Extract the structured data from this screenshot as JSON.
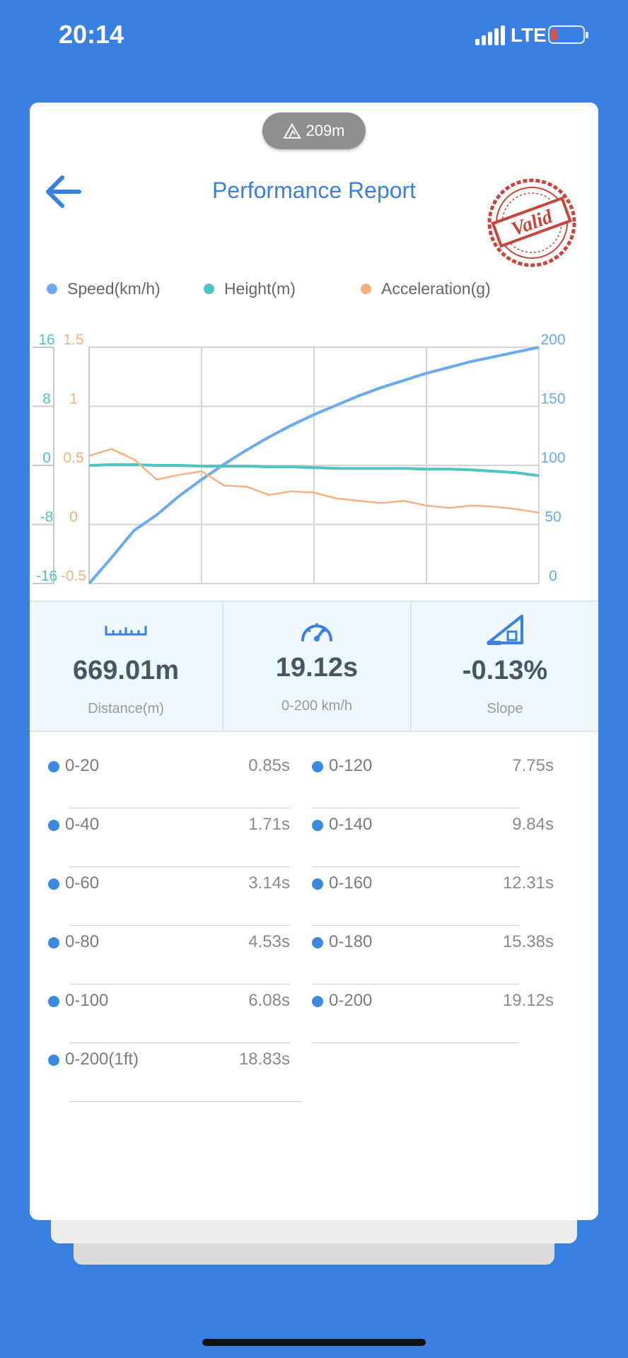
{
  "status_bar": {
    "time": "20:14",
    "carrier": "LTE",
    "battery_level": 0.1
  },
  "header": {
    "altitude": "209m",
    "title": "Performance Report",
    "stamp_text": "Valid"
  },
  "legend": [
    {
      "label": "Speed(km/h)",
      "color": "#6aaaf0"
    },
    {
      "label": "Height(m)",
      "color": "#4fc4c4"
    },
    {
      "label": "Acceleration(g)",
      "color": "#f6b27e"
    }
  ],
  "chart_data": {
    "type": "line",
    "x": [
      0,
      1,
      2,
      3,
      4,
      5,
      6,
      7,
      8,
      9,
      10,
      11,
      12,
      13,
      14,
      15,
      16,
      17,
      18,
      19,
      20
    ],
    "series": [
      {
        "name": "Speed(km/h)",
        "axis": "right",
        "color": "#6aaaf0",
        "values": [
          0,
          22,
          45,
          58,
          74,
          88,
          101,
          113,
          124,
          134,
          143,
          151,
          159,
          166,
          172,
          178,
          183,
          188,
          192,
          196,
          200
        ]
      },
      {
        "name": "Height(m)",
        "axis": "left1",
        "color": "#4fc4c4",
        "values": [
          0,
          0.1,
          0.1,
          0,
          0,
          -0.1,
          -0.1,
          -0.1,
          -0.2,
          -0.2,
          -0.3,
          -0.4,
          -0.4,
          -0.4,
          -0.4,
          -0.5,
          -0.5,
          -0.6,
          -0.8,
          -1.0,
          -1.4
        ]
      },
      {
        "name": "Acceleration(g)",
        "axis": "left2",
        "color": "#f6b27e",
        "values": [
          0.58,
          0.64,
          0.55,
          0.38,
          0.42,
          0.45,
          0.33,
          0.32,
          0.25,
          0.28,
          0.27,
          0.22,
          0.2,
          0.18,
          0.2,
          0.16,
          0.14,
          0.16,
          0.15,
          0.13,
          0.1
        ]
      }
    ],
    "y_axis_left1": {
      "ticks": [
        "16",
        "8",
        "0",
        "-8",
        "-16"
      ],
      "range": [
        -16,
        16
      ],
      "color": "#4fc4c4"
    },
    "y_axis_left2": {
      "ticks": [
        "1.5",
        "1",
        "0.5",
        "0",
        "-0.5"
      ],
      "range": [
        -0.5,
        1.5
      ],
      "color": "#f6b27e"
    },
    "y_axis_right": {
      "ticks": [
        "200",
        "150",
        "100",
        "50",
        "0"
      ],
      "range": [
        0,
        200
      ],
      "color": "#6aaaf0"
    },
    "grid": true
  },
  "stats": [
    {
      "value": "669.01m",
      "label": "Distance(m)",
      "icon": "ruler-icon"
    },
    {
      "value": "19.12s",
      "label": "0-200 km/h",
      "icon": "speedometer-icon"
    },
    {
      "value": "-0.13%",
      "label": "Slope",
      "icon": "slope-icon"
    }
  ],
  "times_left": [
    {
      "label": "0-20",
      "value": "0.85s"
    },
    {
      "label": "0-40",
      "value": "1.71s"
    },
    {
      "label": "0-60",
      "value": "3.14s"
    },
    {
      "label": "0-80",
      "value": "4.53s"
    },
    {
      "label": "0-100",
      "value": "6.08s"
    },
    {
      "label": "0-200(1ft)",
      "value": "18.83s"
    }
  ],
  "times_right": [
    {
      "label": "0-120",
      "value": "7.75s"
    },
    {
      "label": "0-140",
      "value": "9.84s"
    },
    {
      "label": "0-160",
      "value": "12.31s"
    },
    {
      "label": "0-180",
      "value": "15.38s"
    },
    {
      "label": "0-200",
      "value": "19.12s"
    }
  ]
}
